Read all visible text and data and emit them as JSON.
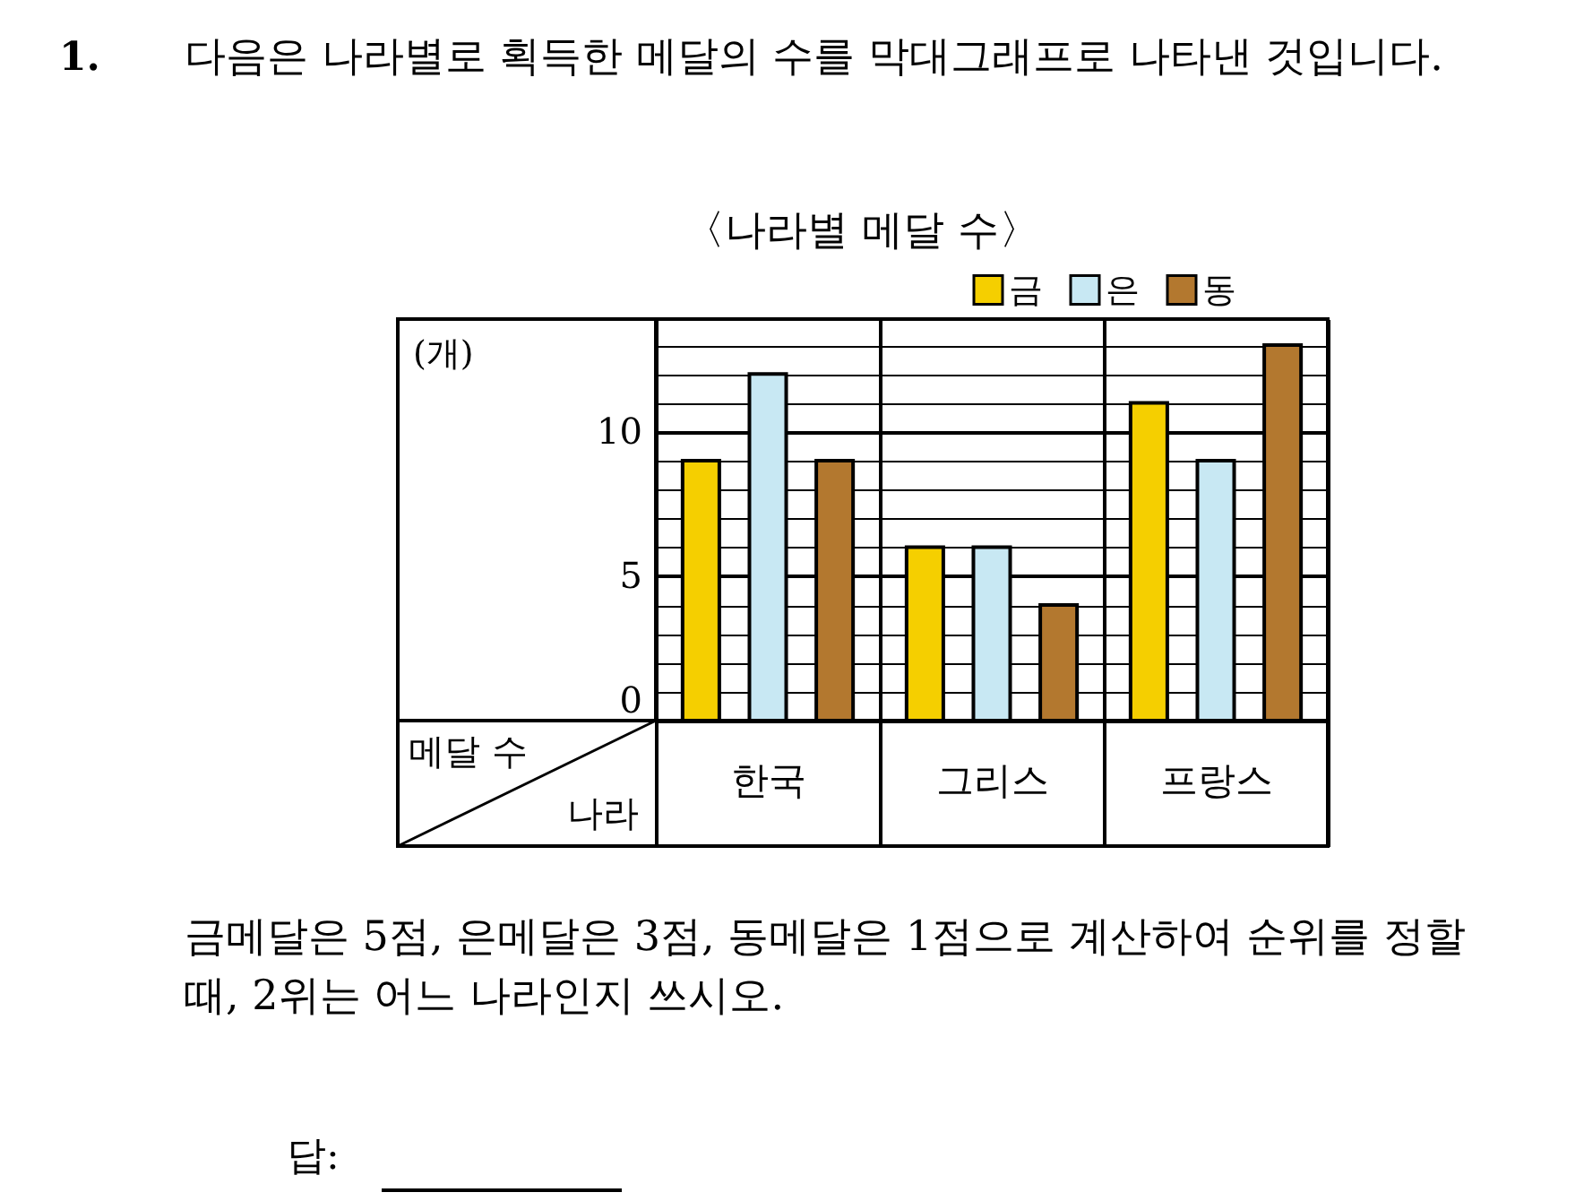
{
  "chart_data": {
    "type": "bar",
    "title": "〈나라별 메달 수〉",
    "xlabel": "나라",
    "ylabel": "(개)",
    "categories": [
      "한국",
      "그리스",
      "프랑스"
    ],
    "series": [
      {
        "name": "금",
        "color": "#f5cf00",
        "values": [
          9,
          6,
          11
        ]
      },
      {
        "name": "은",
        "color": "#c8e8f3",
        "values": [
          12,
          6,
          9
        ]
      },
      {
        "name": "동",
        "color": "#b3782f",
        "values": [
          9,
          4,
          13
        ]
      }
    ],
    "ylim": [
      0,
      13.9
    ],
    "yticks": [
      0,
      {
        "value": 1,
        "label": null
      },
      {
        "value": 2,
        "label": null
      },
      {
        "value": 3,
        "label": null
      },
      {
        "value": 4,
        "label": null
      },
      5,
      {
        "value": 6,
        "label": null
      },
      {
        "value": 7,
        "label": null
      },
      {
        "value": 8,
        "label": null
      },
      {
        "value": 9,
        "label": null
      },
      10,
      {
        "value": 11,
        "label": null
      },
      {
        "value": 12,
        "label": null
      },
      {
        "value": 13,
        "label": null
      }
    ],
    "grid": true,
    "legend": "top right",
    "annotations": [
      "1.",
      "다음은 나라별로 획득한 메달의 수를 막대그래프로 나타낸 것입니다.",
      "메달 수",
      "금메달은 5점, 은메달은 3점, 동메달은 1점으로 계산하여 순위를 정할",
      "때, 2위는 어느 나라인지 쓰시오.",
      "답:"
    ]
  }
}
